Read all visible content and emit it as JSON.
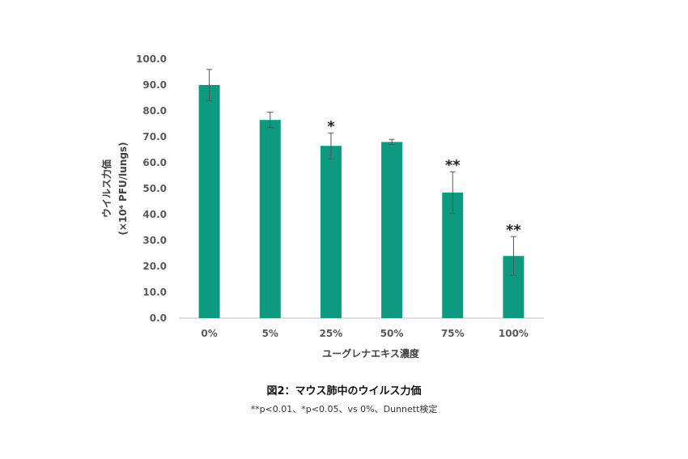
{
  "chart_data": {
    "type": "bar",
    "categories": [
      "0%",
      "5%",
      "25%",
      "50%",
      "75%",
      "100%"
    ],
    "values": [
      90.0,
      76.5,
      66.5,
      68.0,
      48.5,
      24.0
    ],
    "errors": [
      6.0,
      3.0,
      5.0,
      1.0,
      8.0,
      7.5
    ],
    "significance": [
      "",
      "",
      "*",
      "",
      "**",
      "**"
    ],
    "ylim": [
      0,
      100
    ],
    "ytick_step": 10,
    "ytick_labels": [
      "0.0",
      "10.0",
      "20.0",
      "30.0",
      "40.0",
      "50.0",
      "60.0",
      "70.0",
      "80.0",
      "90.0",
      "100.0"
    ],
    "xlabel": "ユーグレナエキス濃度",
    "ylabel_line1": "ウイルス力価",
    "ylabel_line2": "(×10⁴ PFU/lungs)",
    "grid": false,
    "bar_color": "#0e9a80",
    "error_color": "#555555"
  },
  "caption": {
    "title": "図2：マウス肺中のウイルス力価",
    "note": "**p<0.01、*p<0.05、vs 0%、Dunnett検定"
  }
}
